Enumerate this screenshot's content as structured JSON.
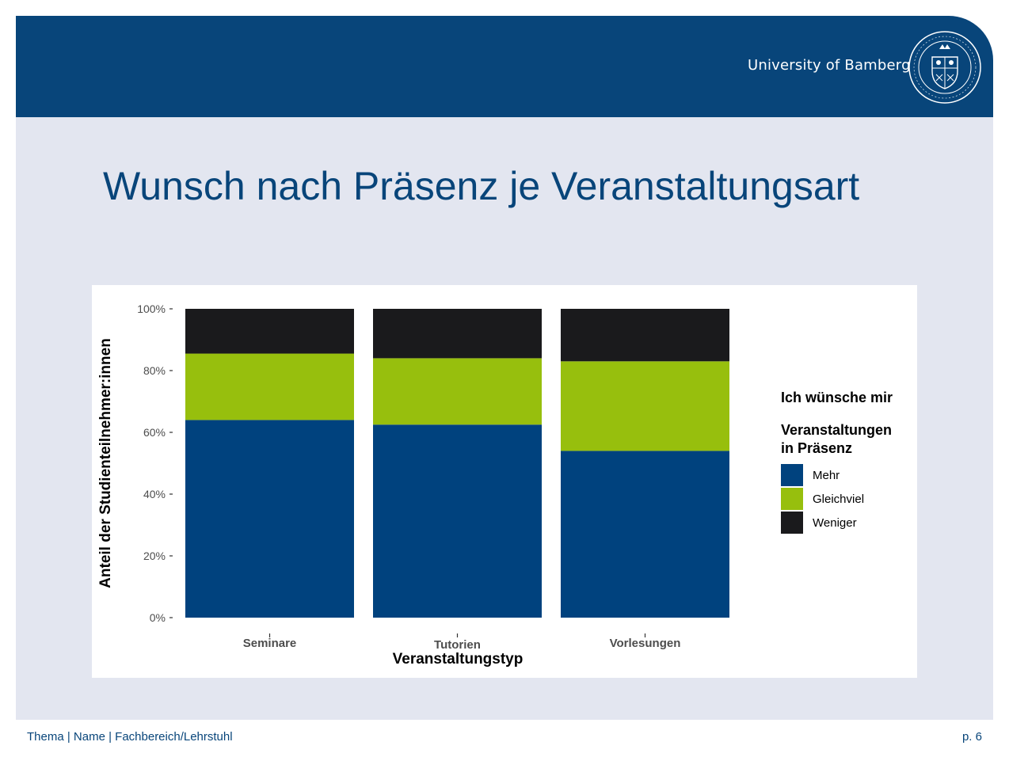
{
  "header": {
    "university_name": "University of Bamberg",
    "seal_icon": "university-seal-icon",
    "brand_color": "#08457a"
  },
  "slide": {
    "title": "Wunsch nach Präsenz je Veranstaltungsart"
  },
  "footer": {
    "left_text": "Thema | Name | Fachbereich/Lehrstuhl",
    "page_label": "p. 6"
  },
  "chart_data": {
    "type": "bar",
    "stacked": true,
    "categories": [
      "Seminare",
      "Tutorien",
      "Vorlesungen"
    ],
    "series": [
      {
        "name": "Mehr",
        "color": "#00427e",
        "values": [
          64,
          62.5,
          54
        ]
      },
      {
        "name": "Gleichviel",
        "color": "#97bf0d",
        "values": [
          21.5,
          21.5,
          29
        ]
      },
      {
        "name": "Weniger",
        "color": "#1a1a1c",
        "values": [
          14.5,
          16,
          17
        ]
      }
    ],
    "xlabel": "Veranstaltungstyp",
    "ylabel": "Anteil der Studienteilnehmer:innen",
    "ylim": [
      0,
      100
    ],
    "yticks": [
      "0%",
      "20%",
      "40%",
      "60%",
      "80%",
      "100%"
    ],
    "legend": {
      "title_line1": "Ich wünsche mir",
      "title_line2": "Veranstaltungen",
      "title_line3": "in Präsenz",
      "placement": "right"
    },
    "grid": false
  }
}
